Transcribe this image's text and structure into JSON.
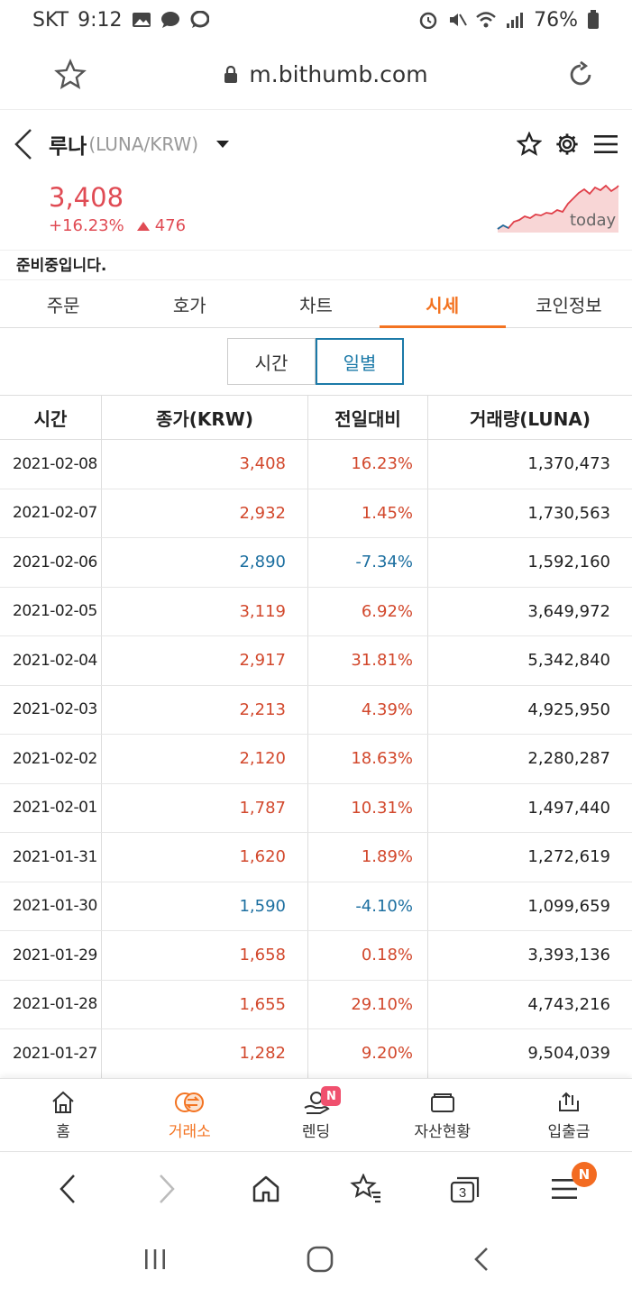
{
  "status_bar": {
    "carrier": "SKT",
    "time": "9:12",
    "battery": "76%"
  },
  "browser": {
    "url": "m.bithumb.com"
  },
  "header": {
    "coin_name": "루나",
    "pair": "(LUNA/KRW)"
  },
  "price": {
    "current": "3,408",
    "change_pct": "+16.23%",
    "change_amount": "476",
    "sparkline_label": "today"
  },
  "notice": "준비중입니다.",
  "tabs": [
    {
      "label": "주문",
      "active": false
    },
    {
      "label": "호가",
      "active": false
    },
    {
      "label": "차트",
      "active": false
    },
    {
      "label": "시세",
      "active": true
    },
    {
      "label": "코인정보",
      "active": false
    }
  ],
  "segment": {
    "time_label": "시간",
    "daily_label": "일별",
    "selected": "일별"
  },
  "table": {
    "headers": [
      "시간",
      "종가(KRW)",
      "전일대비",
      "거래량(LUNA)"
    ],
    "rows": [
      {
        "date": "2021-02-08",
        "close": "3,408",
        "change": "16.23%",
        "volume": "1,370,473",
        "dir": "up"
      },
      {
        "date": "2021-02-07",
        "close": "2,932",
        "change": "1.45%",
        "volume": "1,730,563",
        "dir": "up"
      },
      {
        "date": "2021-02-06",
        "close": "2,890",
        "change": "-7.34%",
        "volume": "1,592,160",
        "dir": "down"
      },
      {
        "date": "2021-02-05",
        "close": "3,119",
        "change": "6.92%",
        "volume": "3,649,972",
        "dir": "up"
      },
      {
        "date": "2021-02-04",
        "close": "2,917",
        "change": "31.81%",
        "volume": "5,342,840",
        "dir": "up"
      },
      {
        "date": "2021-02-03",
        "close": "2,213",
        "change": "4.39%",
        "volume": "4,925,950",
        "dir": "up"
      },
      {
        "date": "2021-02-02",
        "close": "2,120",
        "change": "18.63%",
        "volume": "2,280,287",
        "dir": "up"
      },
      {
        "date": "2021-02-01",
        "close": "1,787",
        "change": "10.31%",
        "volume": "1,497,440",
        "dir": "up"
      },
      {
        "date": "2021-01-31",
        "close": "1,620",
        "change": "1.89%",
        "volume": "1,272,619",
        "dir": "up"
      },
      {
        "date": "2021-01-30",
        "close": "1,590",
        "change": "-4.10%",
        "volume": "1,099,659",
        "dir": "down"
      },
      {
        "date": "2021-01-29",
        "close": "1,658",
        "change": "0.18%",
        "volume": "3,393,136",
        "dir": "up"
      },
      {
        "date": "2021-01-28",
        "close": "1,655",
        "change": "29.10%",
        "volume": "4,743,216",
        "dir": "up"
      },
      {
        "date": "2021-01-27",
        "close": "1,282",
        "change": "9.20%",
        "volume": "9,504,039",
        "dir": "up"
      }
    ]
  },
  "bottom_nav": [
    {
      "label": "홈",
      "icon": "home-icon",
      "active": false
    },
    {
      "label": "거래소",
      "icon": "exchange-icon",
      "active": true
    },
    {
      "label": "렌딩",
      "icon": "lending-icon",
      "active": false,
      "badge": "N"
    },
    {
      "label": "자산현황",
      "icon": "wallet-icon",
      "active": false
    },
    {
      "label": "입출금",
      "icon": "transfer-icon",
      "active": false
    }
  ],
  "browser_nav": {
    "tab_count": "3",
    "menu_badge": "N"
  },
  "colors": {
    "accent": "#f37321",
    "up": "#d2482c",
    "down": "#1c6fa0",
    "price": "#e04b54"
  }
}
